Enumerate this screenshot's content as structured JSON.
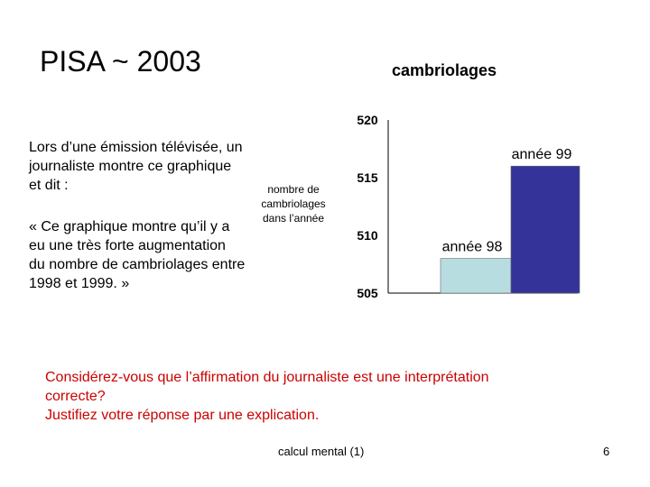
{
  "slide": {
    "title": "PISA ~ 2003",
    "intro": "Lors d’une émission télévisée, un journaliste montre ce graphique et dit :",
    "quote": "« Ce graphique montre qu’il y a eu une très forte augmentation du nombre de cambriolages entre 1998 et 1999. »",
    "question_lines": [
      "Considérez-vous que l’affirmation du journaliste est une interprétation",
      "correcte?",
      "Justifiez votre réponse par une explication."
    ],
    "footer": "calcul mental (1)",
    "page_number": "6"
  },
  "chart_data": {
    "type": "bar",
    "title": "cambriolages",
    "ylabel": [
      "nombre de",
      "cambriolages",
      "dans l’année"
    ],
    "categories": [
      "année 98",
      "année 99"
    ],
    "values": [
      508,
      516
    ],
    "ylim": [
      505,
      520
    ],
    "yticks": [
      505,
      510,
      515,
      520
    ],
    "bar_colors": [
      "#b8dde1",
      "#33339a"
    ],
    "grid": false
  }
}
